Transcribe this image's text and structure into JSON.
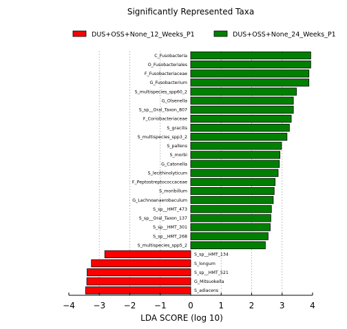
{
  "chart_data": {
    "type": "bar",
    "orientation": "horizontal",
    "title": "Significantly Represented Taxa",
    "xlabel": "LDA SCORE (log 10)",
    "ylabel": "",
    "xlim": [
      -4,
      4
    ],
    "xticks": [
      -4,
      -3,
      -2,
      -1,
      0,
      1,
      2,
      3,
      4
    ],
    "xtick_labels": [
      "−4",
      "−3",
      "−2",
      "−1",
      "0",
      "1",
      "2",
      "3",
      "4"
    ],
    "grid": "vertical dashed",
    "legend_position": "top",
    "series": [
      {
        "name": "DUS+OSS+None_12_Weeks_P1",
        "color": "#ff0000"
      },
      {
        "name": "DUS+OSS+None_24_Weeks_P1",
        "color": "#008000"
      }
    ],
    "bars": [
      {
        "label": "C_Fusobacteria",
        "value": 3.94,
        "series": 1
      },
      {
        "label": "O_Fusobacteriales",
        "value": 3.94,
        "series": 1
      },
      {
        "label": "F_Fusobacteriaceae",
        "value": 3.88,
        "series": 1
      },
      {
        "label": "G_Fusobacterium",
        "value": 3.88,
        "series": 1
      },
      {
        "label": "S_multispecies_spp60_2",
        "value": 3.47,
        "series": 1
      },
      {
        "label": "G_Olsenella",
        "value": 3.37,
        "series": 1
      },
      {
        "label": "S_sp__Oral_Taxon_807",
        "value": 3.37,
        "series": 1
      },
      {
        "label": "F_Coriobacteriaceae",
        "value": 3.3,
        "series": 1
      },
      {
        "label": "S_gracilis",
        "value": 3.24,
        "series": 1
      },
      {
        "label": "S_multispecies_spp3_2",
        "value": 3.16,
        "series": 1
      },
      {
        "label": "S_pallens",
        "value": 2.98,
        "series": 1
      },
      {
        "label": "S_morbi",
        "value": 2.93,
        "series": 1
      },
      {
        "label": "G_Catonella",
        "value": 2.91,
        "series": 1
      },
      {
        "label": "S_lecithinolyticum",
        "value": 2.87,
        "series": 1
      },
      {
        "label": "F_Peptostreptococcaceae",
        "value": 2.77,
        "series": 1
      },
      {
        "label": "S_moribillum",
        "value": 2.74,
        "series": 1
      },
      {
        "label": "G_Lachnoanaerobaculum",
        "value": 2.71,
        "series": 1
      },
      {
        "label": "S_sp__HMT_473",
        "value": 2.65,
        "series": 1
      },
      {
        "label": "S_sp__Oral_Taxon_137",
        "value": 2.63,
        "series": 1
      },
      {
        "label": "S_sp__HMT_301",
        "value": 2.61,
        "series": 1
      },
      {
        "label": "S_sp__HMT_268",
        "value": 2.54,
        "series": 1
      },
      {
        "label": "S_multispecies_spp5_2",
        "value": 2.45,
        "series": 1
      },
      {
        "label": "S_sp__HMT_134",
        "value": -2.82,
        "series": 0
      },
      {
        "label": "S_longum",
        "value": -3.26,
        "series": 0
      },
      {
        "label": "S_sp__HMT_521",
        "value": -3.4,
        "series": 0
      },
      {
        "label": "G_Mitsuokella",
        "value": -3.41,
        "series": 0
      },
      {
        "label": "S_adiacens",
        "value": -3.45,
        "series": 0
      }
    ]
  }
}
